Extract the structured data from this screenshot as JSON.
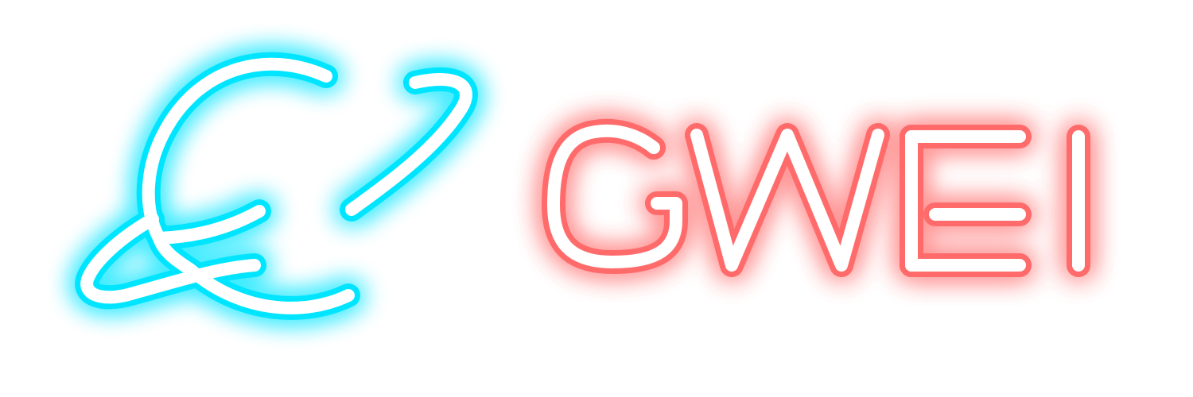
{
  "logo": {
    "wordmark": "GWEI",
    "colors": {
      "background": "#ffffff",
      "emblem_glow": "#00e5ff",
      "wordmark_glow": "#ff6b6b",
      "core_stroke": "#ffffff"
    }
  }
}
